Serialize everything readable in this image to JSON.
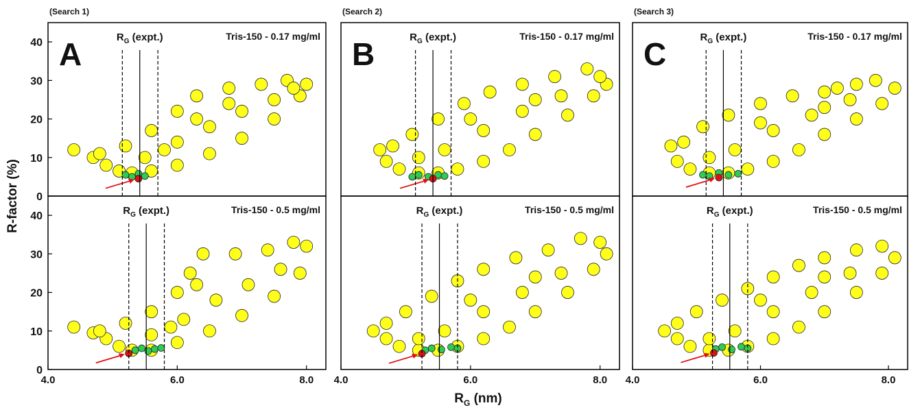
{
  "figure": {
    "ylabel": "R-factor (%)",
    "xlabel": {
      "main": "R",
      "sub": "G",
      "rest": " (nm)"
    }
  },
  "chart_data": [
    {
      "type": "scatter",
      "search": "(Search 1)",
      "letter": "A",
      "condition": "Tris-150 -  0.17 mg/ml",
      "rg_label": {
        "main": "R",
        "sub": "G",
        "rest": " (expt.)"
      },
      "xlim": [
        4.0,
        8.3
      ],
      "ylim": [
        0,
        45
      ],
      "yticks": [
        0,
        10,
        20,
        30,
        40
      ],
      "ref_lines": [
        {
          "value": 5.15,
          "style": "dashed"
        },
        {
          "value": 5.42,
          "style": "solid"
        },
        {
          "value": 5.7,
          "style": "dashed"
        }
      ],
      "series": [
        {
          "color": "#ffff1a",
          "x": [
            4.4,
            4.7,
            4.9,
            5.1,
            5.3,
            5.6,
            6.0,
            6.5,
            7.0,
            7.5,
            7.9,
            4.8,
            5.2,
            5.6,
            6.0,
            6.3,
            6.8,
            7.3,
            7.7,
            8.0,
            5.5,
            6.0,
            6.5,
            7.0,
            7.5,
            6.3,
            5.8,
            7.8,
            6.8
          ],
          "values": [
            12,
            10,
            8,
            6.5,
            6,
            6.5,
            8,
            11,
            15,
            20,
            26,
            11,
            13,
            17,
            22,
            26,
            28,
            29,
            30,
            29,
            10,
            14,
            18,
            22,
            25,
            20,
            12,
            28,
            24
          ]
        },
        {
          "color": "#2ecc55",
          "x": [
            5.2,
            5.3,
            5.4,
            5.5
          ],
          "values": [
            5.5,
            5,
            5.8,
            5.2
          ]
        },
        {
          "color": "#e01010",
          "x": [
            5.4
          ],
          "values": [
            4.5
          ]
        }
      ]
    },
    {
      "type": "scatter",
      "search": "(Search 2)",
      "letter": "B",
      "condition": "Tris-150 -  0.17 mg/ml",
      "rg_label": {
        "main": "R",
        "sub": "G",
        "rest": " (expt.)"
      },
      "xlim": [
        4.0,
        8.3
      ],
      "ylim": [
        0,
        45
      ],
      "ref_lines": [
        {
          "value": 5.15,
          "style": "dashed"
        },
        {
          "value": 5.42,
          "style": "solid"
        },
        {
          "value": 5.7,
          "style": "dashed"
        }
      ],
      "series": [
        {
          "color": "#ffff1a",
          "x": [
            4.6,
            4.7,
            4.9,
            5.2,
            5.5,
            5.8,
            6.2,
            6.6,
            7.0,
            7.5,
            7.9,
            8.1,
            4.8,
            5.1,
            5.5,
            5.9,
            6.3,
            6.8,
            7.3,
            7.8,
            8.0,
            5.6,
            6.2,
            6.8,
            7.4,
            6.0,
            7.0,
            5.2
          ],
          "values": [
            12,
            9,
            7,
            6,
            6,
            7,
            9,
            12,
            16,
            21,
            26,
            29,
            13,
            16,
            20,
            24,
            27,
            29,
            31,
            33,
            31,
            12,
            17,
            22,
            26,
            20,
            25,
            10
          ]
        },
        {
          "color": "#2ecc55",
          "x": [
            5.1,
            5.2,
            5.35,
            5.5,
            5.6
          ],
          "values": [
            5,
            5.5,
            5,
            5.5,
            5.2
          ]
        },
        {
          "color": "#e01010",
          "x": [
            5.42
          ],
          "values": [
            4.5
          ]
        }
      ]
    },
    {
      "type": "scatter",
      "search": "(Search 3)",
      "letter": "C",
      "condition": "Tris-150 -  0.17 mg/ml",
      "rg_label": {
        "main": "R",
        "sub": "G",
        "rest": " (expt.)"
      },
      "xlim": [
        4.0,
        8.3
      ],
      "ylim": [
        0,
        45
      ],
      "ref_lines": [
        {
          "value": 5.15,
          "style": "dashed"
        },
        {
          "value": 5.42,
          "style": "solid"
        },
        {
          "value": 5.7,
          "style": "dashed"
        }
      ],
      "series": [
        {
          "color": "#ffff1a",
          "x": [
            4.6,
            4.7,
            4.9,
            5.2,
            5.5,
            5.8,
            6.2,
            6.6,
            7.0,
            7.5,
            7.9,
            8.1,
            4.8,
            5.1,
            5.5,
            6.0,
            6.5,
            7.0,
            7.5,
            7.8,
            5.6,
            6.2,
            6.8,
            7.4,
            6.0,
            7.0,
            5.2,
            7.2
          ],
          "values": [
            13,
            9,
            7,
            6,
            6,
            7,
            9,
            12,
            16,
            20,
            24,
            28,
            14,
            18,
            21,
            24,
            26,
            27,
            29,
            30,
            12,
            17,
            21,
            25,
            19,
            23,
            10,
            28
          ]
        },
        {
          "color": "#2ecc55",
          "x": [
            5.1,
            5.2,
            5.35,
            5.5,
            5.65
          ],
          "values": [
            5.5,
            5.2,
            6,
            5.5,
            5.8
          ]
        },
        {
          "color": "#e01010",
          "x": [
            5.35
          ],
          "values": [
            4.8
          ]
        }
      ]
    },
    {
      "type": "scatter",
      "condition": "Tris-150 -  0.5 mg/ml",
      "rg_label": {
        "main": "R",
        "sub": "G",
        "rest": " (expt.)"
      },
      "xlim": [
        4.0,
        8.3
      ],
      "ylim": [
        0,
        45
      ],
      "yticks": [
        0,
        10,
        20,
        30,
        40
      ],
      "xticks": [
        {
          "value": 4,
          "label": "4.0"
        },
        {
          "value": 6,
          "label": "6.0"
        },
        {
          "value": 8,
          "label": "8.0"
        }
      ],
      "ref_lines": [
        {
          "value": 5.25,
          "style": "dashed"
        },
        {
          "value": 5.52,
          "style": "solid"
        },
        {
          "value": 5.8,
          "style": "dashed"
        }
      ],
      "series": [
        {
          "color": "#ffff1a",
          "x": [
            4.4,
            4.7,
            4.9,
            5.1,
            5.3,
            5.6,
            6.0,
            6.5,
            7.0,
            7.5,
            7.9,
            4.8,
            5.2,
            5.6,
            6.0,
            6.2,
            6.4,
            6.9,
            7.4,
            7.8,
            8.0,
            5.6,
            6.1,
            6.6,
            7.1,
            7.6,
            6.3,
            5.9
          ],
          "values": [
            11,
            9.5,
            8,
            6,
            5,
            5,
            7,
            10,
            14,
            19,
            25,
            10,
            12,
            15,
            20,
            25,
            30,
            30,
            31,
            33,
            32,
            9,
            13,
            18,
            22,
            26,
            22,
            11
          ]
        },
        {
          "color": "#2ecc55",
          "x": [
            5.35,
            5.45,
            5.55,
            5.65,
            5.75
          ],
          "values": [
            5,
            5.5,
            4.8,
            5.3,
            5.6
          ]
        },
        {
          "color": "#e01010",
          "x": [
            5.25
          ],
          "values": [
            4.2
          ]
        }
      ]
    },
    {
      "type": "scatter",
      "condition": "Tris-150 -  0.5 mg/ml",
      "rg_label": {
        "main": "R",
        "sub": "G",
        "rest": " (expt.)"
      },
      "xlim": [
        4.0,
        8.3
      ],
      "ylim": [
        0,
        45
      ],
      "xticks": [
        {
          "value": 4,
          "label": "4.0"
        },
        {
          "value": 6,
          "label": "6.0"
        },
        {
          "value": 8,
          "label": "8.0"
        }
      ],
      "ref_lines": [
        {
          "value": 5.25,
          "style": "dashed"
        },
        {
          "value": 5.52,
          "style": "solid"
        },
        {
          "value": 5.8,
          "style": "dashed"
        }
      ],
      "series": [
        {
          "color": "#ffff1a",
          "x": [
            4.5,
            4.7,
            4.9,
            5.2,
            5.5,
            5.8,
            6.2,
            6.6,
            7.0,
            7.5,
            7.9,
            8.1,
            4.7,
            5.0,
            5.4,
            5.8,
            6.2,
            6.7,
            7.2,
            7.7,
            8.0,
            5.6,
            6.2,
            6.8,
            7.4,
            6.0,
            7.0,
            5.2
          ],
          "values": [
            10,
            8,
            6,
            5,
            5,
            6,
            8,
            11,
            15,
            20,
            26,
            30,
            12,
            15,
            19,
            23,
            26,
            29,
            31,
            34,
            33,
            10,
            15,
            20,
            25,
            18,
            24,
            8
          ]
        },
        {
          "color": "#2ecc55",
          "x": [
            5.3,
            5.4,
            5.55,
            5.7,
            5.8
          ],
          "values": [
            5,
            5.5,
            5.2,
            5.8,
            5.5
          ]
        },
        {
          "color": "#e01010",
          "x": [
            5.25
          ],
          "values": [
            4.1
          ]
        }
      ]
    },
    {
      "type": "scatter",
      "condition": "Tris-150 -  0.5 mg/ml",
      "rg_label": {
        "main": "R",
        "sub": "G",
        "rest": " (expt.)"
      },
      "xlim": [
        4.0,
        8.3
      ],
      "ylim": [
        0,
        45
      ],
      "xticks": [
        {
          "value": 4,
          "label": "4.0"
        },
        {
          "value": 6,
          "label": "6.0"
        },
        {
          "value": 8,
          "label": "8.0"
        }
      ],
      "ref_lines": [
        {
          "value": 5.25,
          "style": "dashed"
        },
        {
          "value": 5.52,
          "style": "solid"
        },
        {
          "value": 5.8,
          "style": "dashed"
        }
      ],
      "series": [
        {
          "color": "#ffff1a",
          "x": [
            4.5,
            4.7,
            4.9,
            5.2,
            5.5,
            5.8,
            6.2,
            6.6,
            7.0,
            7.5,
            7.9,
            8.1,
            4.7,
            5.0,
            5.4,
            5.8,
            6.2,
            6.6,
            7.0,
            7.5,
            7.9,
            5.6,
            6.2,
            6.8,
            7.4,
            6.0,
            7.0,
            5.2
          ],
          "values": [
            10,
            8,
            6,
            5,
            5,
            6,
            8,
            11,
            15,
            20,
            25,
            29,
            12,
            15,
            18,
            21,
            24,
            27,
            29,
            31,
            32,
            10,
            15,
            20,
            25,
            18,
            24,
            8
          ]
        },
        {
          "color": "#2ecc55",
          "x": [
            5.3,
            5.4,
            5.55,
            5.7,
            5.8
          ],
          "values": [
            5.3,
            5.8,
            5.2,
            5.9,
            5.5
          ]
        },
        {
          "color": "#e01010",
          "x": [
            5.27
          ],
          "values": [
            4.3
          ]
        }
      ]
    }
  ]
}
